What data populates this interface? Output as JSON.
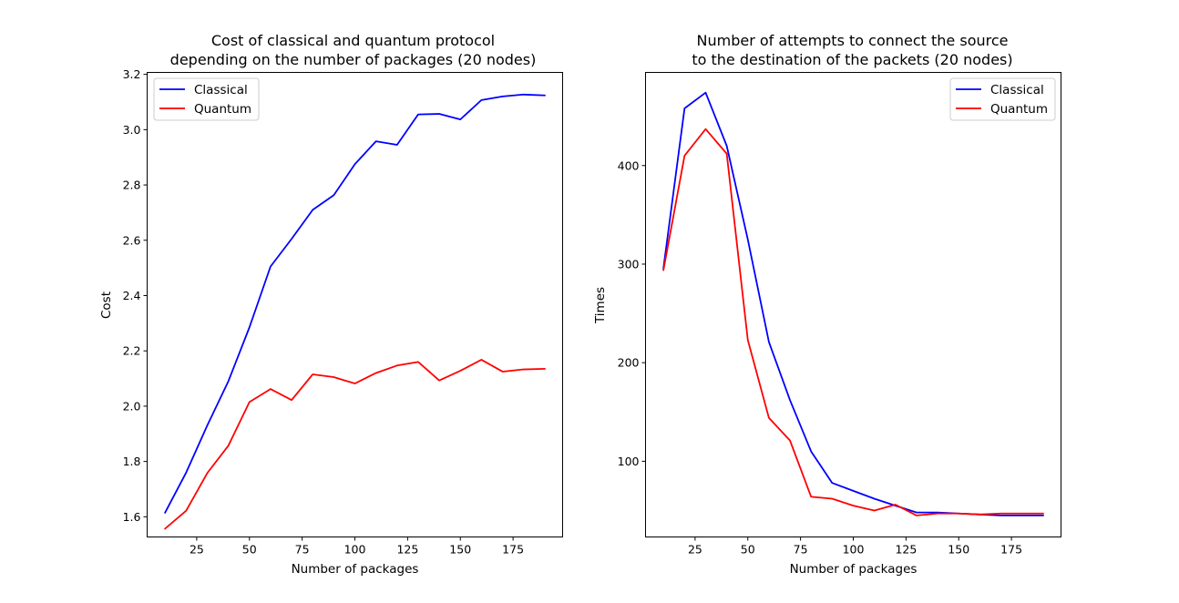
{
  "chart_data": [
    {
      "type": "line",
      "title_lines": [
        "Cost of classical and quantum protocol",
        "depending on the number of packages (20 nodes)"
      ],
      "xlabel": "Number of packages",
      "ylabel": "Cost",
      "xlim": [
        1.5,
        198.5
      ],
      "ylim": [
        1.527,
        3.207
      ],
      "xticks": [
        25,
        50,
        75,
        100,
        125,
        150,
        175
      ],
      "yticks": [
        1.6,
        1.8,
        2.0,
        2.2,
        2.4,
        2.6,
        2.8,
        3.0,
        3.2
      ],
      "ytick_labels": [
        "1.6",
        "1.8",
        "2.0",
        "2.2",
        "2.4",
        "2.6",
        "2.8",
        "3.0",
        "3.2"
      ],
      "legend_position": "upper-left",
      "x": [
        10,
        20,
        30,
        40,
        50,
        60,
        70,
        80,
        90,
        100,
        110,
        120,
        130,
        140,
        150,
        160,
        170,
        180,
        190
      ],
      "series": [
        {
          "name": "Classical",
          "color": "#0000ff",
          "values": [
            1.615,
            1.76,
            1.93,
            2.09,
            2.285,
            2.505,
            2.605,
            2.71,
            2.763,
            2.875,
            2.958,
            2.945,
            3.055,
            3.057,
            3.037,
            3.107,
            3.12,
            3.127,
            3.124
          ]
        },
        {
          "name": "Quantum",
          "color": "#ff0000",
          "values": [
            1.557,
            1.622,
            1.758,
            1.857,
            2.015,
            2.062,
            2.022,
            2.115,
            2.105,
            2.082,
            2.12,
            2.147,
            2.16,
            2.093,
            2.128,
            2.168,
            2.125,
            2.133,
            2.135
          ]
        }
      ]
    },
    {
      "type": "line",
      "title_lines": [
        "Number of attempts to connect the source",
        "to the destination of the packets (20 nodes)"
      ],
      "xlabel": "Number of packages",
      "ylabel": "Times",
      "xlim": [
        1.5,
        198.5
      ],
      "ylim": [
        23.2,
        494.5
      ],
      "xticks": [
        25,
        50,
        75,
        100,
        125,
        150,
        175
      ],
      "yticks": [
        100,
        200,
        300,
        400
      ],
      "ytick_labels": [
        "100",
        "200",
        "300",
        "400"
      ],
      "legend_position": "upper-right",
      "x": [
        10,
        20,
        30,
        40,
        50,
        60,
        70,
        80,
        90,
        100,
        110,
        120,
        130,
        140,
        150,
        160,
        170,
        180,
        190
      ],
      "series": [
        {
          "name": "Classical",
          "color": "#0000ff",
          "values": [
            296,
            458,
            474,
            420,
            325,
            221,
            162,
            110,
            78,
            70,
            62,
            55,
            48,
            48,
            47,
            46,
            45,
            45,
            45
          ]
        },
        {
          "name": "Quantum",
          "color": "#ff0000",
          "values": [
            294,
            410,
            437,
            412,
            223,
            144,
            121,
            64,
            62,
            55,
            50,
            56,
            45,
            47,
            47,
            46,
            47,
            47,
            47
          ]
        }
      ]
    }
  ]
}
